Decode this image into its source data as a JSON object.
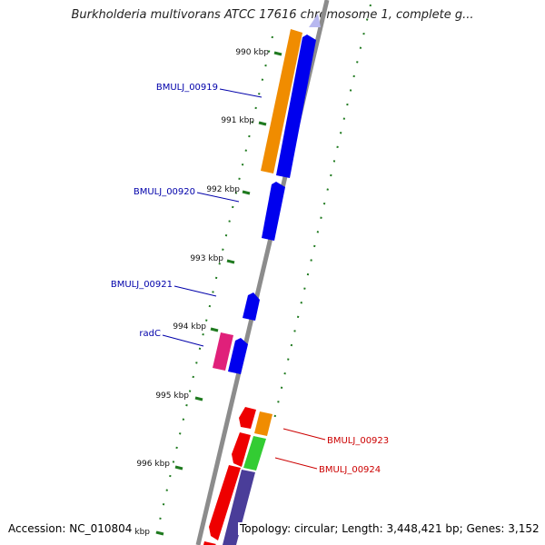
{
  "title": "Burkholderia multivorans ATCC 17616 chromosome 1, complete g...",
  "accession": "Accession: NC_010804",
  "topology": "Topology: circular; Length: 3,448,421 bp; Genes: 3,152",
  "colors": {
    "backbone": "#8c8c8c",
    "ticks": "#1f7a1f",
    "forward_gene": "#0000ee",
    "forward_label": "#0000aa",
    "reverse_label": "#cc0000",
    "orange": "#f08c00",
    "red": "#ee0000",
    "green": "#33cc33",
    "purple": "#4a3d99",
    "magenta": "#e0207a",
    "lavender": "#b8b8f0"
  },
  "ruler": [
    {
      "label": "990 kbp"
    },
    {
      "label": "991 kbp"
    },
    {
      "label": "992 kbp"
    },
    {
      "label": "993 kbp"
    },
    {
      "label": "994 kbp"
    },
    {
      "label": "995 kbp"
    },
    {
      "label": "996 kbp"
    },
    {
      "label": "kbp"
    }
  ],
  "gene_labels": [
    {
      "text": "BMULJ_00919",
      "strand": "forward"
    },
    {
      "text": "BMULJ_00920",
      "strand": "forward"
    },
    {
      "text": "BMULJ_00921",
      "strand": "forward"
    },
    {
      "text": "radC",
      "strand": "forward"
    },
    {
      "text": "BMULJ_00923",
      "strand": "reverse"
    },
    {
      "text": "BMULJ_00924",
      "strand": "reverse"
    }
  ]
}
